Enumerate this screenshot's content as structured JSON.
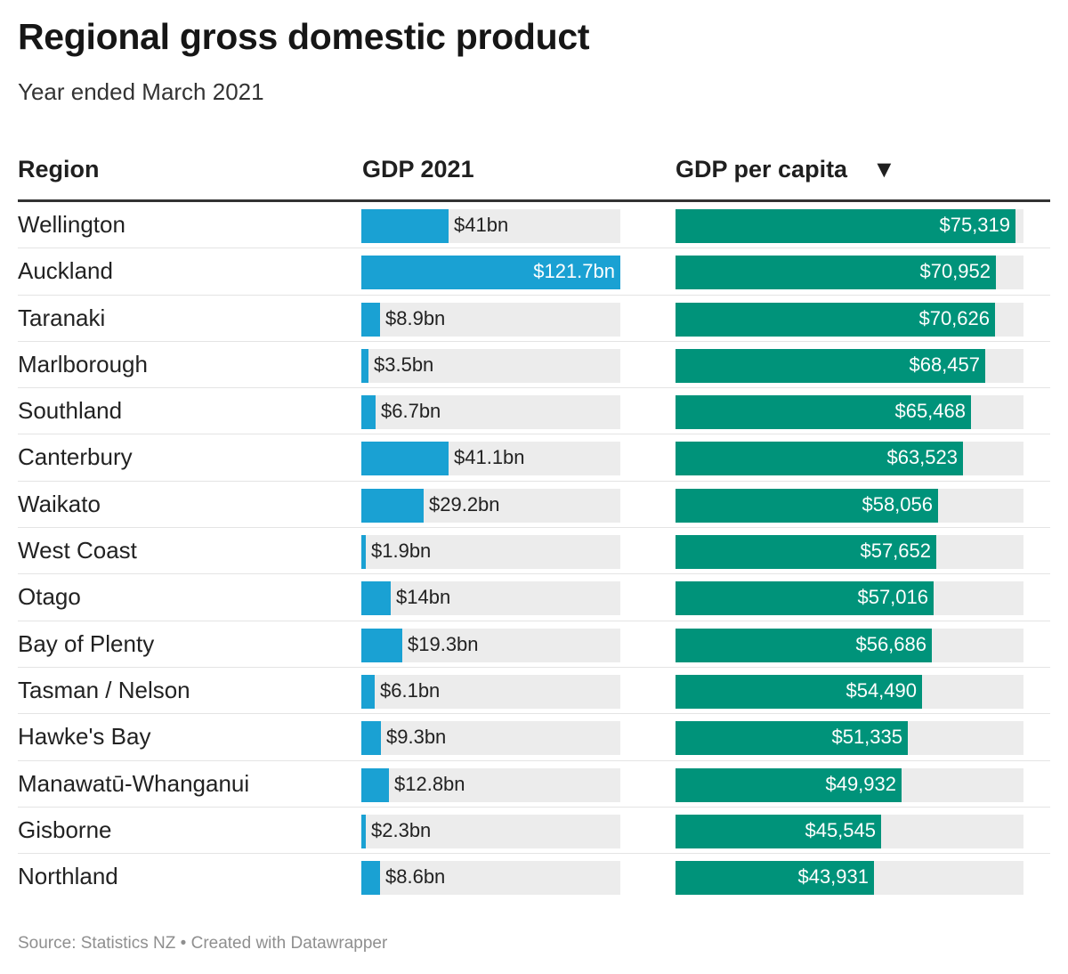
{
  "header": {
    "title": "Regional gross domestic product",
    "subtitle": "Year ended March 2021"
  },
  "columns": {
    "region": "Region",
    "gdp": "GDP 2021",
    "per_capita": "GDP per capita",
    "sort_icon": "▼"
  },
  "footer": {
    "source": "Source: Statistics NZ • Created with Datawrapper"
  },
  "colors": {
    "gdp_bar": "#1aa1d3",
    "per_capita_bar": "#00937a",
    "track": "#ececec"
  },
  "chart_data": {
    "type": "table",
    "title": "Regional gross domestic product",
    "subtitle": "Year ended March 2021",
    "gdp_max": 121.7,
    "per_capita_max": 77000,
    "rows": [
      {
        "region": "Wellington",
        "gdp": 41,
        "gdp_label": "$41bn",
        "per_capita": 75319,
        "per_capita_label": "$75,319"
      },
      {
        "region": "Auckland",
        "gdp": 121.7,
        "gdp_label": "$121.7bn",
        "per_capita": 70952,
        "per_capita_label": "$70,952"
      },
      {
        "region": "Taranaki",
        "gdp": 8.9,
        "gdp_label": "$8.9bn",
        "per_capita": 70626,
        "per_capita_label": "$70,626"
      },
      {
        "region": "Marlborough",
        "gdp": 3.5,
        "gdp_label": "$3.5bn",
        "per_capita": 68457,
        "per_capita_label": "$68,457"
      },
      {
        "region": "Southland",
        "gdp": 6.7,
        "gdp_label": "$6.7bn",
        "per_capita": 65468,
        "per_capita_label": "$65,468"
      },
      {
        "region": "Canterbury",
        "gdp": 41.1,
        "gdp_label": "$41.1bn",
        "per_capita": 63523,
        "per_capita_label": "$63,523"
      },
      {
        "region": "Waikato",
        "gdp": 29.2,
        "gdp_label": "$29.2bn",
        "per_capita": 58056,
        "per_capita_label": "$58,056"
      },
      {
        "region": "West Coast",
        "gdp": 1.9,
        "gdp_label": "$1.9bn",
        "per_capita": 57652,
        "per_capita_label": "$57,652"
      },
      {
        "region": "Otago",
        "gdp": 14,
        "gdp_label": "$14bn",
        "per_capita": 57016,
        "per_capita_label": "$57,016"
      },
      {
        "region": "Bay of Plenty",
        "gdp": 19.3,
        "gdp_label": "$19.3bn",
        "per_capita": 56686,
        "per_capita_label": "$56,686"
      },
      {
        "region": "Tasman / Nelson",
        "gdp": 6.1,
        "gdp_label": "$6.1bn",
        "per_capita": 54490,
        "per_capita_label": "$54,490"
      },
      {
        "region": "Hawke's Bay",
        "gdp": 9.3,
        "gdp_label": "$9.3bn",
        "per_capita": 51335,
        "per_capita_label": "$51,335"
      },
      {
        "region": "Manawatū-Whanganui",
        "gdp": 12.8,
        "gdp_label": "$12.8bn",
        "per_capita": 49932,
        "per_capita_label": "$49,932"
      },
      {
        "region": "Gisborne",
        "gdp": 2.3,
        "gdp_label": "$2.3bn",
        "per_capita": 45545,
        "per_capita_label": "$45,545"
      },
      {
        "region": "Northland",
        "gdp": 8.6,
        "gdp_label": "$8.6bn",
        "per_capita": 43931,
        "per_capita_label": "$43,931"
      }
    ]
  }
}
